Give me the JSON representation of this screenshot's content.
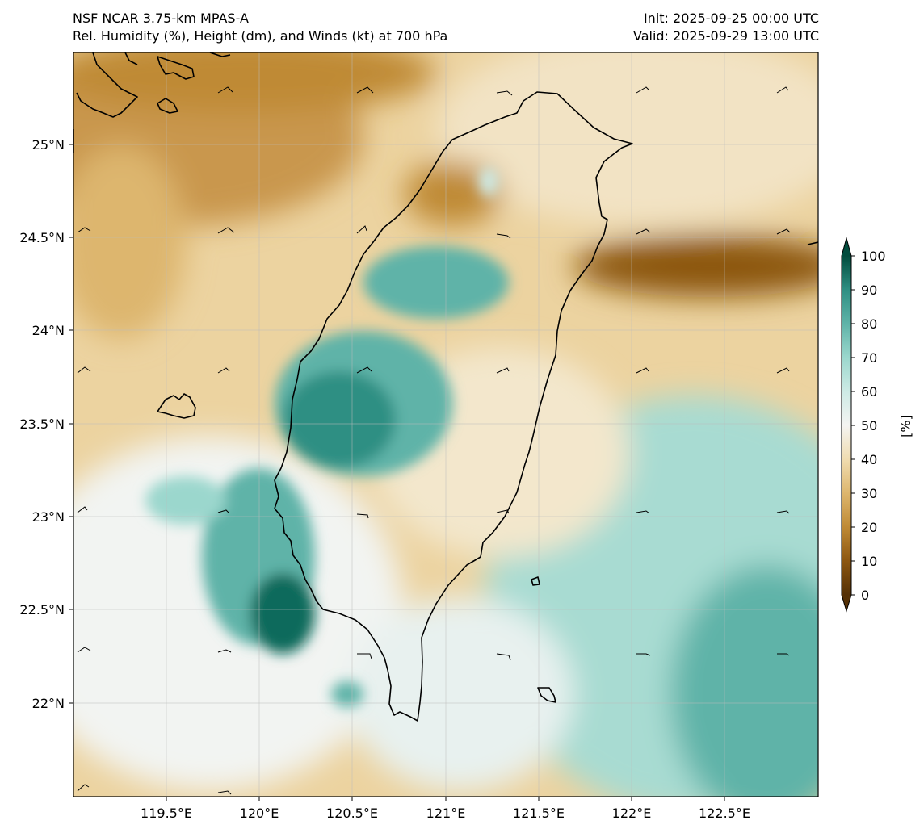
{
  "header": {
    "left_line1": "NSF NCAR 3.75-km MPAS-A",
    "left_line2": "Rel. Humidity (%), Height (dm), and Winds (kt) at 700 hPa",
    "right_line1": "Init: 2025-09-25 00:00 UTC",
    "right_line2": "Valid: 2025-09-29 13:00 UTC"
  },
  "map": {
    "lon_min": 119.0,
    "lon_max": 123.0,
    "lat_min": 21.5,
    "lat_max": 25.5,
    "lat_ticks": [
      "25°N",
      "24.5°N",
      "24°N",
      "23.5°N",
      "23°N",
      "22.5°N",
      "22°N"
    ],
    "lon_ticks": [
      "119.5°E",
      "120°E",
      "120.5°E",
      "121°E",
      "121.5°E",
      "122°E",
      "122.5°E"
    ],
    "gridlines": true
  },
  "colorbar": {
    "label": "[%]",
    "ticks": [
      "100",
      "90",
      "80",
      "70",
      "60",
      "50",
      "40",
      "30",
      "20",
      "10",
      "0"
    ],
    "colors": [
      "#014c3d",
      "#0b6a5c",
      "#2f8f83",
      "#5fb3a8",
      "#9bd7cd",
      "#f4f4f2",
      "#f0dcb0",
      "#ddb66e",
      "#bf8a35",
      "#8c5611",
      "#543005"
    ]
  }
}
